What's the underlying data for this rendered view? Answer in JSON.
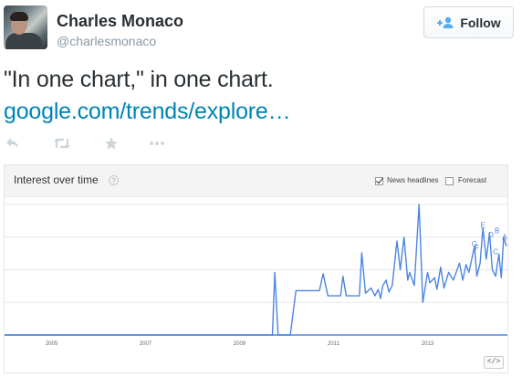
{
  "profile": {
    "name": "Charles Monaco",
    "handle": "@charlesmonaco",
    "follow_label": "Follow"
  },
  "icons": {
    "follow": "add-user-icon",
    "reply": "reply-icon",
    "retweet": "retweet-icon",
    "favorite": "star-icon",
    "more": "more-icon",
    "help": "question-icon",
    "embed": "embed-code-icon"
  },
  "tweet": {
    "text": "\"In one chart,\" in one chart.",
    "link": "google.com/trends/explore…"
  },
  "card": {
    "title": "Interest over time",
    "help_glyph": "?",
    "news_headlines_label": "News headlines",
    "news_headlines_checked": true,
    "forecast_label": "Forecast",
    "forecast_checked": false,
    "embed_label": "</>"
  },
  "colors": {
    "line": "#4d85e0",
    "link": "#0084b4",
    "grid": "#e9e9e9",
    "axis": "#4d85e0"
  },
  "chart_data": {
    "type": "line",
    "title": "Interest over time",
    "xlim": [
      2004.0,
      2014.7
    ],
    "ylim": [
      0,
      100
    ],
    "x_ticks": [
      2005,
      2007,
      2009,
      2011,
      2013
    ],
    "x_tick_labels": [
      "2005",
      "2007",
      "2009",
      "2011",
      "2013"
    ],
    "grid": true,
    "series": [
      {
        "values": [
          [
            2004.0,
            0
          ],
          [
            2009.7,
            0
          ],
          [
            2009.75,
            48
          ],
          [
            2009.82,
            0
          ],
          [
            2010.08,
            0
          ],
          [
            2010.2,
            34
          ],
          [
            2010.7,
            34
          ],
          [
            2010.78,
            47
          ],
          [
            2010.88,
            30
          ],
          [
            2011.15,
            30
          ],
          [
            2011.2,
            45
          ],
          [
            2011.27,
            30
          ],
          [
            2011.55,
            30
          ],
          [
            2011.6,
            63
          ],
          [
            2011.68,
            32
          ],
          [
            2011.8,
            36
          ],
          [
            2011.88,
            30
          ],
          [
            2011.95,
            35
          ],
          [
            2012.0,
            28
          ],
          [
            2012.05,
            38
          ],
          [
            2012.12,
            42
          ],
          [
            2012.18,
            33
          ],
          [
            2012.25,
            38
          ],
          [
            2012.35,
            72
          ],
          [
            2012.42,
            50
          ],
          [
            2012.5,
            75
          ],
          [
            2012.58,
            42
          ],
          [
            2012.62,
            48
          ],
          [
            2012.72,
            38
          ],
          [
            2012.82,
            100
          ],
          [
            2012.9,
            25
          ],
          [
            2013.0,
            48
          ],
          [
            2013.05,
            40
          ],
          [
            2013.15,
            44
          ],
          [
            2013.2,
            35
          ],
          [
            2013.28,
            52
          ],
          [
            2013.35,
            36
          ],
          [
            2013.45,
            48
          ],
          [
            2013.55,
            42
          ],
          [
            2013.68,
            55
          ],
          [
            2013.75,
            42
          ],
          [
            2013.82,
            54
          ],
          [
            2013.88,
            48
          ],
          [
            2014.0,
            68
          ],
          [
            2014.05,
            45
          ],
          [
            2014.12,
            55
          ],
          [
            2014.18,
            82
          ],
          [
            2014.25,
            58
          ],
          [
            2014.32,
            78
          ],
          [
            2014.38,
            50
          ],
          [
            2014.45,
            45
          ],
          [
            2014.52,
            62
          ],
          [
            2014.57,
            44
          ],
          [
            2014.62,
            75
          ],
          [
            2014.68,
            68
          ]
        ]
      }
    ],
    "annotations": [
      {
        "label": "E",
        "x": 2014.18,
        "y": 82
      },
      {
        "label": "G",
        "x": 2014.0,
        "y": 68
      },
      {
        "label": "F",
        "x": 2014.05,
        "y": 65
      },
      {
        "label": "D",
        "x": 2014.35,
        "y": 75
      },
      {
        "label": "B",
        "x": 2014.48,
        "y": 78
      },
      {
        "label": "C",
        "x": 2014.45,
        "y": 62
      },
      {
        "label": "A",
        "x": 2014.64,
        "y": 73
      }
    ]
  }
}
